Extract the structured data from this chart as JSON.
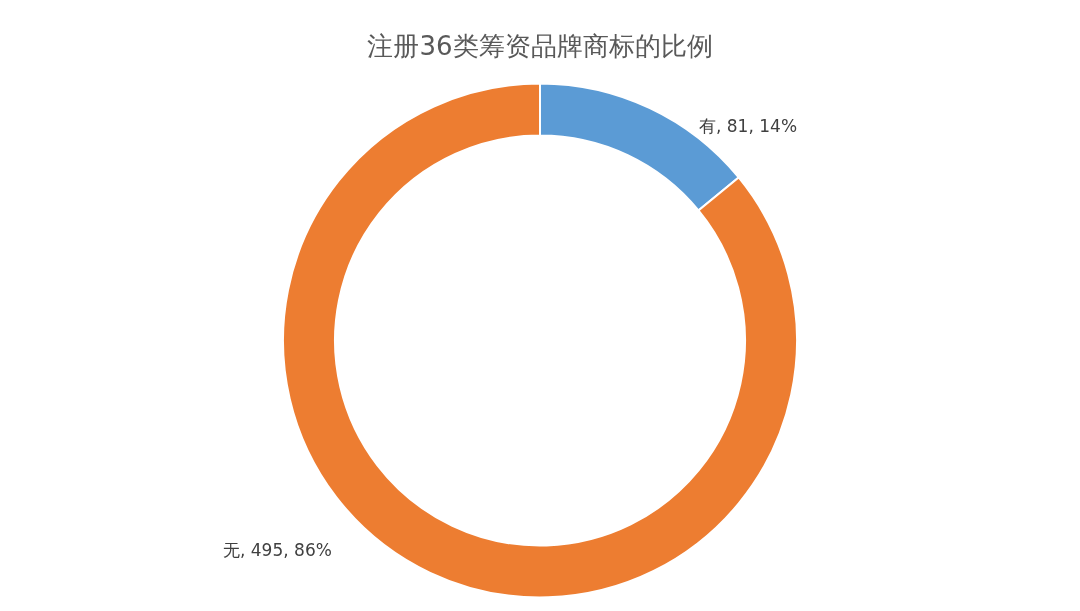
{
  "chart_data": {
    "type": "donut",
    "title": "注册36类筹资品牌商标的比例",
    "categories": [
      "有",
      "无"
    ],
    "values": [
      81,
      495
    ],
    "colors": [
      "#5b9bd5",
      "#ed7d31"
    ],
    "value_labels": [
      ", 81, 14%",
      ", 495, 86%"
    ],
    "legend": false
  }
}
